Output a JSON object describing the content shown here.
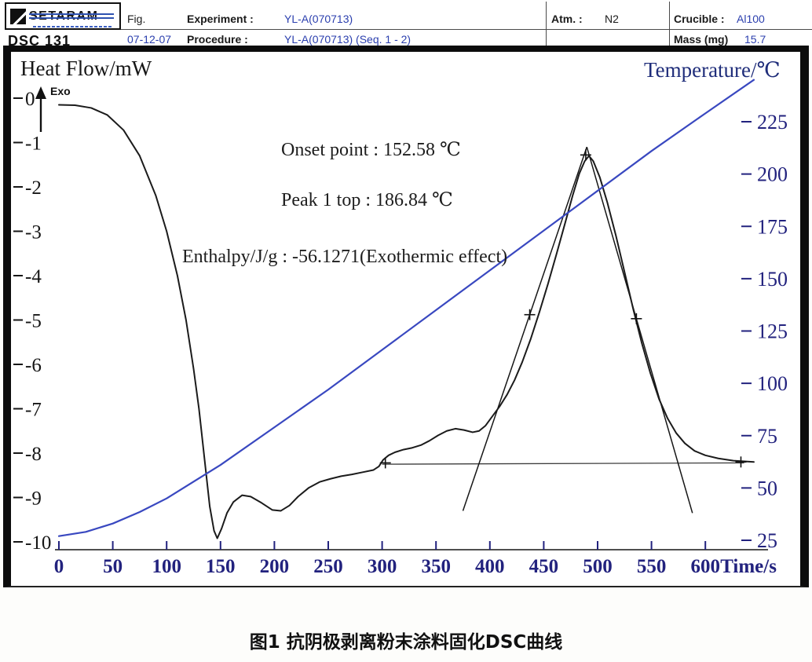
{
  "colors": {
    "dsc_curve": "#1b1b1b",
    "temperature_curve": "#3948c0",
    "header_value_blue": "#2b3fae",
    "axis_navy": "#22227e"
  },
  "header": {
    "logo_text": "SETARAM",
    "instrument": "DSC 131",
    "fig_label": "Fig.",
    "experiment_label": "Experiment :",
    "experiment_value": "YL-A(070713)",
    "date_value": "07-12-07",
    "procedure_label": "Procedure :",
    "procedure_value": "YL-A(070713) (Seq. 1 - 2)",
    "atm_label": "Atm. :",
    "atm_value": "N2",
    "crucible_label": "Crucible :",
    "crucible_value": "Al100",
    "mass_label": "Mass (mg)",
    "mass_value": "15.7"
  },
  "page": {
    "caption": "图1  抗阴极剥离粉末涂料固化DSC曲线"
  },
  "chart_data": {
    "type": "line",
    "title": "",
    "x_axis": {
      "label": "Time/s",
      "min": 0,
      "max": 655,
      "ticks": [
        0,
        50,
        100,
        150,
        200,
        250,
        300,
        350,
        400,
        450,
        500,
        550,
        600
      ]
    },
    "y_axis_left": {
      "label": "Heat Flow/mW",
      "exo_label": "Exo",
      "min": -10.5,
      "max": 0.4,
      "ticks": [
        0,
        -1,
        -2,
        -3,
        -4,
        -5,
        -6,
        -7,
        -8,
        -9,
        -10
      ]
    },
    "y_axis_right": {
      "label": "Temperature/℃",
      "min": 25,
      "max": 245,
      "ticks": [
        225,
        200,
        175,
        150,
        125,
        100,
        75,
        50,
        25
      ]
    },
    "grid": false,
    "annotations": [
      {
        "text": "Onset point : 152.58 ℃"
      },
      {
        "text": "Peak 1 top : 186.84 ℃"
      },
      {
        "text": "Enthalpy/J/g : -56.1271(Exothermic effect)"
      }
    ],
    "series": [
      {
        "name": "DSC heat flow",
        "axis": "left",
        "unit": "mW",
        "color": "#1b1b1b",
        "width": 2,
        "points": [
          [
            0,
            -0.15
          ],
          [
            15,
            -0.16
          ],
          [
            30,
            -0.22
          ],
          [
            45,
            -0.38
          ],
          [
            60,
            -0.72
          ],
          [
            75,
            -1.3
          ],
          [
            90,
            -2.2
          ],
          [
            100,
            -3.0
          ],
          [
            110,
            -4.0
          ],
          [
            118,
            -5.0
          ],
          [
            125,
            -6.1
          ],
          [
            130,
            -7.0
          ],
          [
            135,
            -8.1
          ],
          [
            140,
            -9.2
          ],
          [
            144,
            -9.75
          ],
          [
            147,
            -9.92
          ],
          [
            151,
            -9.7
          ],
          [
            156,
            -9.35
          ],
          [
            162,
            -9.1
          ],
          [
            170,
            -8.95
          ],
          [
            178,
            -8.98
          ],
          [
            188,
            -9.12
          ],
          [
            198,
            -9.28
          ],
          [
            206,
            -9.3
          ],
          [
            214,
            -9.18
          ],
          [
            222,
            -8.98
          ],
          [
            232,
            -8.78
          ],
          [
            242,
            -8.65
          ],
          [
            252,
            -8.58
          ],
          [
            262,
            -8.52
          ],
          [
            272,
            -8.48
          ],
          [
            282,
            -8.43
          ],
          [
            292,
            -8.38
          ],
          [
            297,
            -8.3
          ],
          [
            301,
            -8.15
          ],
          [
            306,
            -8.05
          ],
          [
            312,
            -7.98
          ],
          [
            320,
            -7.92
          ],
          [
            328,
            -7.88
          ],
          [
            336,
            -7.82
          ],
          [
            344,
            -7.72
          ],
          [
            352,
            -7.6
          ],
          [
            360,
            -7.5
          ],
          [
            368,
            -7.45
          ],
          [
            376,
            -7.48
          ],
          [
            384,
            -7.53
          ],
          [
            390,
            -7.5
          ],
          [
            396,
            -7.38
          ],
          [
            402,
            -7.18
          ],
          [
            409,
            -6.95
          ],
          [
            416,
            -6.68
          ],
          [
            423,
            -6.35
          ],
          [
            430,
            -5.95
          ],
          [
            438,
            -5.42
          ],
          [
            446,
            -4.82
          ],
          [
            454,
            -4.18
          ],
          [
            462,
            -3.5
          ],
          [
            470,
            -2.8
          ],
          [
            477,
            -2.18
          ],
          [
            483,
            -1.7
          ],
          [
            488,
            -1.42
          ],
          [
            492,
            -1.3
          ],
          [
            496,
            -1.42
          ],
          [
            502,
            -1.78
          ],
          [
            509,
            -2.35
          ],
          [
            517,
            -3.1
          ],
          [
            525,
            -3.92
          ],
          [
            533,
            -4.75
          ],
          [
            541,
            -5.52
          ],
          [
            549,
            -6.2
          ],
          [
            557,
            -6.78
          ],
          [
            565,
            -7.22
          ],
          [
            573,
            -7.55
          ],
          [
            581,
            -7.78
          ],
          [
            590,
            -7.95
          ],
          [
            600,
            -8.05
          ],
          [
            612,
            -8.12
          ],
          [
            626,
            -8.17
          ],
          [
            645,
            -8.2
          ]
        ]
      },
      {
        "name": "Temperature",
        "axis": "right",
        "unit": "℃",
        "color": "#3948c0",
        "width": 2.2,
        "points": [
          [
            0,
            27
          ],
          [
            25,
            29
          ],
          [
            50,
            33
          ],
          [
            75,
            38.5
          ],
          [
            100,
            45
          ],
          [
            150,
            61
          ],
          [
            200,
            79
          ],
          [
            250,
            97
          ],
          [
            300,
            116
          ],
          [
            350,
            135
          ],
          [
            400,
            154
          ],
          [
            450,
            173
          ],
          [
            500,
            192
          ],
          [
            550,
            211
          ],
          [
            600,
            229
          ],
          [
            645,
            245
          ]
        ]
      }
    ],
    "overlays": {
      "baseline": {
        "axis": "left",
        "points": [
          [
            300,
            -8.25
          ],
          [
            636,
            -8.22
          ]
        ]
      },
      "tangents": [
        {
          "axis": "left",
          "points": [
            [
              375,
              -9.3
            ],
            [
              490,
              -1.1
            ]
          ]
        },
        {
          "axis": "left",
          "points": [
            [
              490,
              -1.1
            ],
            [
              588,
              -9.35
            ]
          ]
        }
      ],
      "markers": [
        [
          489,
          -1.28
        ],
        [
          437,
          -4.88
        ],
        [
          536,
          -4.97
        ],
        [
          303,
          -8.22
        ],
        [
          633,
          -8.2
        ]
      ],
      "onset_temperature_c": 152.58,
      "peak_top_temperature_c": 186.84,
      "enthalpy_j_per_g": -56.1271
    }
  }
}
